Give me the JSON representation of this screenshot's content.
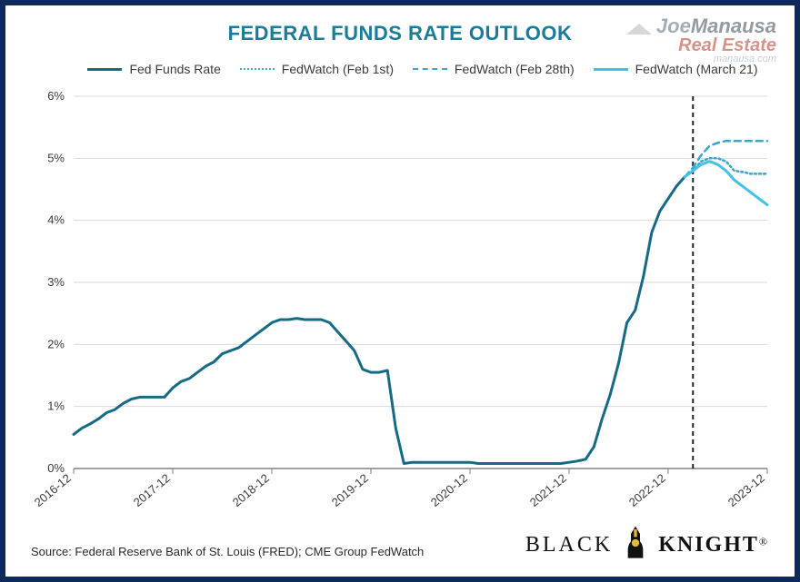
{
  "title": {
    "text": "FEDERAL FUNDS RATE OUTLOOK",
    "color": "#1a7c99",
    "fontsize": 22
  },
  "watermark": {
    "joe": "Joe",
    "manausa": "Manausa",
    "real_estate": "Real Estate",
    "url": "manausa.com"
  },
  "legend": {
    "items": [
      {
        "label": "Fed Funds Rate",
        "color": "#166a84",
        "dash": "solid",
        "width": 3
      },
      {
        "label": "FedWatch (Feb 1st)",
        "color": "#3aa7c9",
        "dash": "dotted",
        "width": 2.5
      },
      {
        "label": "FedWatch (Feb 28th)",
        "color": "#3aa7c9",
        "dash": "dashed",
        "width": 2.5
      },
      {
        "label": "FedWatch (March 21)",
        "color": "#43c1e6",
        "dash": "solid",
        "width": 3
      }
    ]
  },
  "chart": {
    "type": "line",
    "background_color": "#ffffff",
    "grid_color": "#d9d9d9",
    "axis_color": "#808080",
    "ylim": [
      0,
      6
    ],
    "ytick_step": 1,
    "ytick_suffix": "%",
    "x_categories_major": [
      "2016-12",
      "2017-12",
      "2018-12",
      "2019-12",
      "2020-12",
      "2021-12",
      "2022-12",
      "2023-12"
    ],
    "x_start_index": 0,
    "x_step_months": 1,
    "total_months": 85,
    "vref_index": 75,
    "vref_dash": "5 4",
    "vref_color": "#222222",
    "series": {
      "fed_funds": {
        "color": "#166a84",
        "width": 3,
        "dash": "none",
        "y": [
          0.55,
          0.65,
          0.72,
          0.8,
          0.9,
          0.95,
          1.05,
          1.12,
          1.15,
          1.15,
          1.15,
          1.15,
          1.3,
          1.4,
          1.45,
          1.55,
          1.65,
          1.72,
          1.85,
          1.9,
          1.95,
          2.05,
          2.15,
          2.25,
          2.35,
          2.4,
          2.4,
          2.42,
          2.4,
          2.4,
          2.4,
          2.35,
          2.2,
          2.05,
          1.9,
          1.6,
          1.55,
          1.55,
          1.58,
          0.65,
          0.08,
          0.1,
          0.1,
          0.1,
          0.1,
          0.1,
          0.1,
          0.1,
          0.1,
          0.08,
          0.08,
          0.08,
          0.08,
          0.08,
          0.08,
          0.08,
          0.08,
          0.08,
          0.08,
          0.08,
          0.1,
          0.12,
          0.15,
          0.35,
          0.8,
          1.2,
          1.7,
          2.35,
          2.55,
          3.1,
          3.8,
          4.15,
          4.35,
          4.55,
          4.7
        ]
      },
      "feb1": {
        "color": "#3aa7c9",
        "width": 2.5,
        "dash": "2 3",
        "start_index": 74,
        "y": [
          4.7,
          4.8,
          4.95,
          5.0,
          5.0,
          4.95,
          4.8,
          4.78,
          4.75,
          4.75,
          4.75
        ]
      },
      "feb28": {
        "color": "#3aa7c9",
        "width": 2.5,
        "dash": "7 5",
        "start_index": 74,
        "y": [
          4.7,
          4.85,
          5.05,
          5.2,
          5.25,
          5.28,
          5.28,
          5.28,
          5.28,
          5.28,
          5.28
        ]
      },
      "mar21": {
        "color": "#43c1e6",
        "width": 3,
        "dash": "none",
        "start_index": 74,
        "y": [
          4.7,
          4.8,
          4.9,
          4.95,
          4.9,
          4.8,
          4.65,
          4.55,
          4.45,
          4.35,
          4.25
        ]
      }
    }
  },
  "source": {
    "text": "Source: Federal Reserve Bank of St. Louis (FRED); CME Group FedWatch"
  },
  "blackknight": {
    "black": "BLACK",
    "knight": "KNIGHT"
  }
}
